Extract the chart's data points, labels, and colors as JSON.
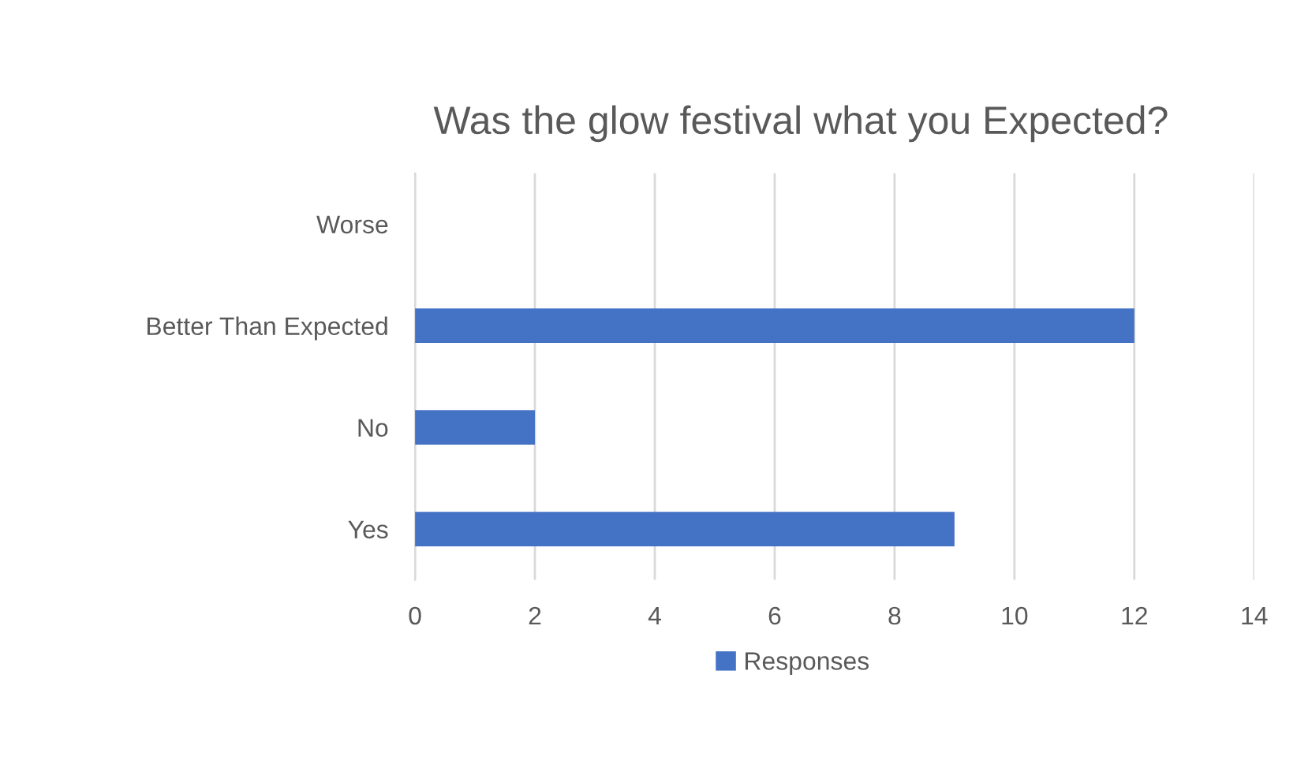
{
  "chart_data": {
    "type": "bar",
    "orientation": "horizontal",
    "title": "Was the glow festival what you Expected?",
    "categories": [
      "Worse",
      "Better Than Expected",
      "No",
      "Yes"
    ],
    "series": [
      {
        "name": "Responses",
        "color": "#4472c4",
        "values": [
          0,
          12,
          2,
          9
        ]
      }
    ],
    "xlim": [
      0,
      14
    ],
    "xticks": [
      0,
      2,
      4,
      6,
      8,
      10,
      12,
      14
    ],
    "grid": "x",
    "legend": "bottom"
  }
}
